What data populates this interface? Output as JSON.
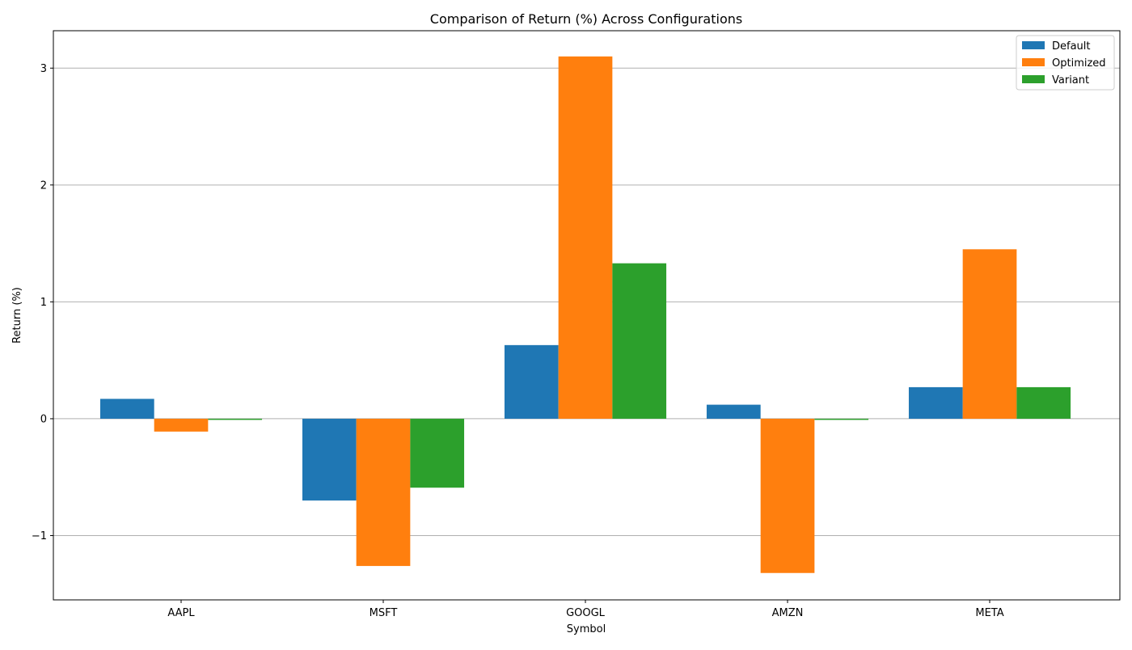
{
  "chart_data": {
    "type": "bar",
    "title": "Comparison of Return (%) Across Configurations",
    "xlabel": "Symbol",
    "ylabel": "Return (%)",
    "categories": [
      "AAPL",
      "MSFT",
      "GOOGL",
      "AMZN",
      "META"
    ],
    "series": [
      {
        "name": "Default",
        "color": "#1f77b4",
        "values": [
          0.17,
          -0.7,
          0.63,
          0.12,
          0.27
        ]
      },
      {
        "name": "Optimized",
        "color": "#ff7f0e",
        "values": [
          -0.11,
          -1.26,
          3.1,
          -1.32,
          1.45
        ]
      },
      {
        "name": "Variant",
        "color": "#2ca02c",
        "values": [
          -0.01,
          -0.59,
          1.33,
          -0.01,
          0.27
        ]
      }
    ],
    "ylim": [
      -1.55,
      3.32
    ],
    "yticks": [
      {
        "value": -1,
        "label": "−1"
      },
      {
        "value": 0,
        "label": "0"
      },
      {
        "value": 1,
        "label": "1"
      },
      {
        "value": 2,
        "label": "2"
      },
      {
        "value": 3,
        "label": "3"
      }
    ],
    "grid": "y-axis only",
    "legend_position": "top-right"
  }
}
